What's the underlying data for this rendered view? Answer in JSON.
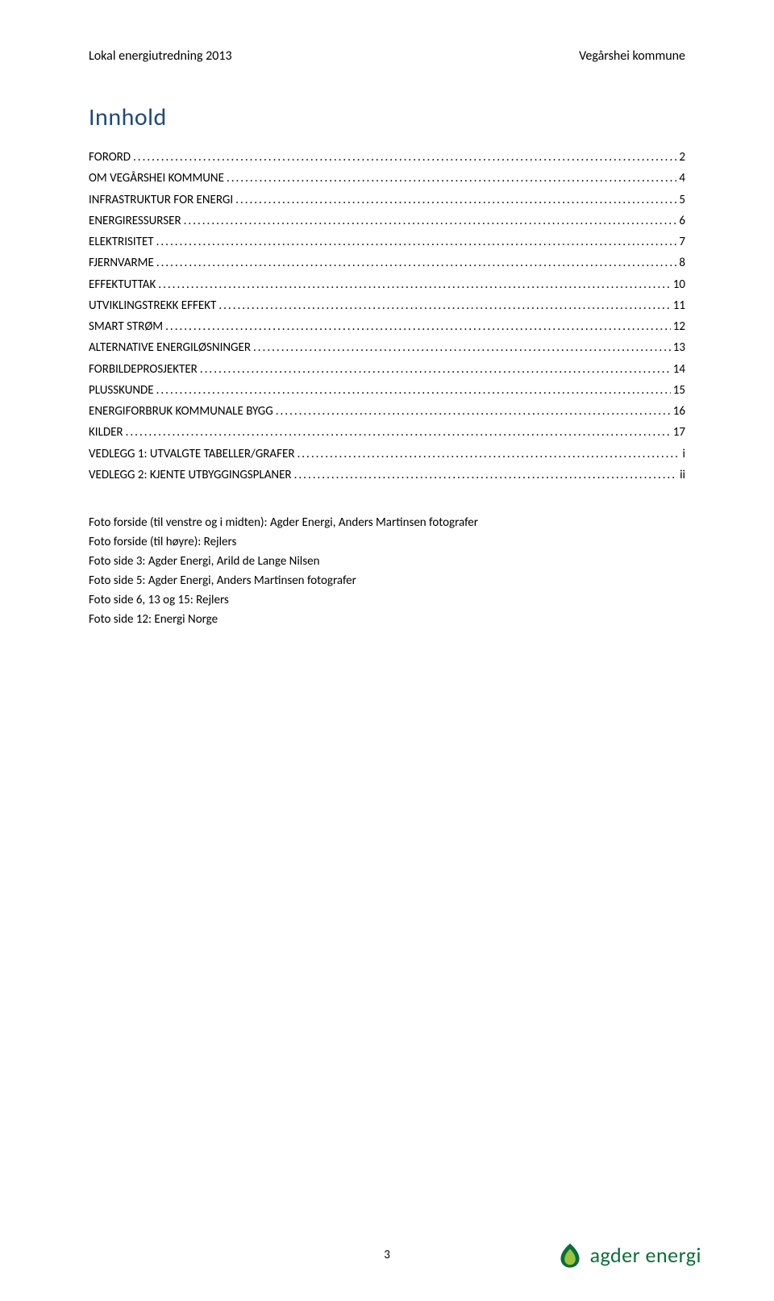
{
  "header": {
    "left": "Lokal energiutredning 2013",
    "right": "Vegårshei kommune"
  },
  "toc": {
    "title": "Innhold",
    "title_color": "#1f497d",
    "entries": [
      {
        "label": "FORORD",
        "page": "2"
      },
      {
        "label": "OM VEGÅRSHEI KOMMUNE",
        "page": "4"
      },
      {
        "label": "INFRASTRUKTUR FOR ENERGI",
        "page": "5"
      },
      {
        "label": "ENERGIRESSURSER",
        "page": "6"
      },
      {
        "label": "ELEKTRISITET",
        "page": "7"
      },
      {
        "label": "FJERNVARME",
        "page": "8"
      },
      {
        "label": "EFFEKTUTTAK",
        "page": "10"
      },
      {
        "label": "UTVIKLINGSTREKK EFFEKT",
        "page": "11"
      },
      {
        "label": "SMART STRØM",
        "page": "12"
      },
      {
        "label": "ALTERNATIVE ENERGILØSNINGER",
        "page": "13"
      },
      {
        "label": "FORBILDEPROSJEKTER",
        "page": "14"
      },
      {
        "label": "PLUSSKUNDE",
        "page": "15"
      },
      {
        "label": "ENERGIFORBRUK KOMMUNALE BYGG",
        "page": "16"
      },
      {
        "label": "KILDER",
        "page": "17"
      },
      {
        "label": "VEDLEGG 1: UTVALGTE TABELLER/GRAFER",
        "page": "i"
      },
      {
        "label": "VEDLEGG 2: KJENTE UTBYGGINGSPLANER",
        "page": "ii"
      }
    ]
  },
  "credits": [
    "Foto forside (til venstre og i midten): Agder Energi, Anders Martinsen fotografer",
    "Foto forside (til høyre): Rejlers",
    "Foto side 3: Agder Energi, Arild de Lange Nilsen",
    "Foto side 5: Agder Energi, Anders Martinsen fotografer",
    "Foto side 6, 13 og 15: Rejlers",
    "Foto side 12: Energi Norge"
  ],
  "footer": {
    "page_number": "3",
    "brand_text": "agder energi",
    "brand_color": "#0b6d3a",
    "logo_outer": "#0b6d3a",
    "logo_inner": "#9ac43c"
  }
}
